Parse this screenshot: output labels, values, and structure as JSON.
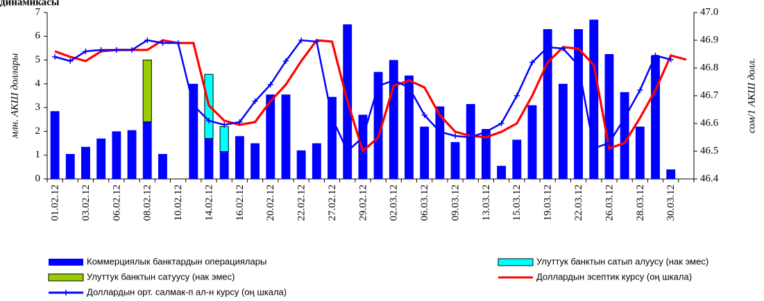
{
  "chart_data": {
    "type": "bar",
    "title": "динамикасы",
    "y_label": "млн. АКШ доллары",
    "y2_label": "сом/1 АКШ долл.",
    "categories": [
      "01.02.12",
      null,
      "03.02.12",
      null,
      "06.02.12",
      null,
      "08.02.12",
      null,
      "10.02.12",
      null,
      "14.02.12",
      null,
      "16.02.12",
      null,
      "20.02.12",
      null,
      "22.02.12",
      null,
      "27.02.12",
      null,
      "29.02.12",
      null,
      "02.03.12",
      null,
      "06.03.12",
      null,
      "09.03.12",
      null,
      "13.03.12",
      null,
      "15.03.12",
      null,
      "19.03.12",
      null,
      "22.03.12",
      null,
      "26.03.12",
      null,
      "28.03.12",
      null,
      "30.03.12",
      null
    ],
    "series": [
      {
        "name": "Коммерциялык банктардын операциялары",
        "type": "bar",
        "color": "#0000ff",
        "values": [
          2.85,
          1.05,
          1.35,
          1.7,
          2.0,
          2.05,
          2.4,
          1.05,
          0,
          4.0,
          1.7,
          1.15,
          1.8,
          1.5,
          3.55,
          3.55,
          1.2,
          1.5,
          3.45,
          6.5,
          2.7,
          4.5,
          5.0,
          4.35,
          2.2,
          3.05,
          1.55,
          3.15,
          2.1,
          0.55,
          1.65,
          3.1,
          6.3,
          4.0,
          6.3,
          6.7,
          5.25,
          3.65,
          2.2,
          5.2,
          0.4,
          null
        ]
      },
      {
        "name": "Улуттук банктын сатып алуусу (нак эмес)",
        "type": "bar",
        "color": "#00ffff",
        "values": [
          null,
          null,
          null,
          null,
          null,
          null,
          null,
          null,
          null,
          null,
          2.7,
          1.05,
          null,
          null,
          null,
          null,
          null,
          null,
          null,
          null,
          null,
          null,
          null,
          null,
          null,
          null,
          null,
          null,
          null,
          null,
          null,
          null,
          null,
          null,
          null,
          null,
          null,
          null,
          null,
          null,
          null,
          null
        ]
      },
      {
        "name": "Улуттук банктын сатуусу (нак эмес)",
        "type": "bar",
        "color": "#99cc00",
        "values": [
          null,
          null,
          null,
          null,
          null,
          null,
          2.6,
          null,
          null,
          null,
          null,
          null,
          null,
          null,
          null,
          null,
          null,
          null,
          null,
          null,
          null,
          null,
          null,
          null,
          null,
          null,
          null,
          null,
          null,
          null,
          null,
          null,
          null,
          null,
          null,
          null,
          null,
          null,
          null,
          null,
          null,
          null
        ]
      },
      {
        "name": "Доллардын эсептик курсу (оң шкала)",
        "type": "line",
        "axis": "y2",
        "color": "#ff0000",
        "values": [
          46.86,
          46.84,
          46.825,
          46.86,
          46.865,
          46.865,
          46.865,
          46.9,
          46.89,
          46.89,
          46.665,
          46.61,
          46.595,
          46.605,
          46.68,
          46.74,
          46.825,
          46.9,
          46.895,
          46.68,
          46.5,
          46.55,
          46.735,
          46.755,
          46.73,
          46.63,
          46.57,
          46.555,
          46.55,
          46.57,
          46.6,
          46.7,
          46.82,
          46.875,
          46.87,
          46.81,
          46.51,
          46.53,
          46.62,
          46.72,
          46.845,
          46.83
        ]
      },
      {
        "name": "Доллардын орт. салмак-п ал-н курсу (оң шкала)",
        "type": "line",
        "axis": "y2",
        "color": "#0000ff",
        "marker": "+",
        "values": [
          46.84,
          46.825,
          46.86,
          46.865,
          46.865,
          46.865,
          46.9,
          46.89,
          46.89,
          46.665,
          46.61,
          46.595,
          46.605,
          46.68,
          46.74,
          46.825,
          46.9,
          46.895,
          46.62,
          46.5,
          46.55,
          46.735,
          46.755,
          46.73,
          46.63,
          46.57,
          46.555,
          46.55,
          46.57,
          46.6,
          46.7,
          46.82,
          46.875,
          46.87,
          46.81,
          46.51,
          46.53,
          46.62,
          46.72,
          46.845,
          46.83,
          null
        ]
      }
    ],
    "ylim": [
      0,
      7
    ],
    "yticks": [
      0,
      1,
      2,
      3,
      4,
      5,
      6,
      7
    ],
    "y2lim": [
      46.4,
      47
    ],
    "y2ticks": [
      46.4,
      46.5,
      46.6,
      46.7,
      46.8,
      46.9,
      {
        "value": 47,
        "label": "47.0"
      }
    ]
  }
}
